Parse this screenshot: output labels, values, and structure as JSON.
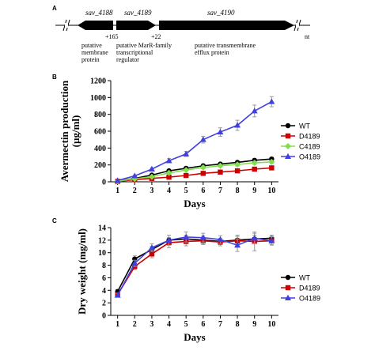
{
  "panel_a": {
    "letter": "A",
    "genes": [
      "sav_4188",
      "sav_4189",
      "sav_4190"
    ],
    "distance_left": "+165",
    "distance_right": "+22",
    "unit": "nt",
    "descriptions": [
      [
        "putative",
        "membrane",
        "protein"
      ],
      [
        "putative MarR-family",
        "transcriptional",
        "regulator"
      ],
      [
        "putative transmembrane",
        "efflux protein"
      ]
    ]
  },
  "chart_data": [
    {
      "type": "line",
      "letter": "B",
      "xlabel": "Days",
      "ylabel_lines": [
        "Avermectin production",
        "(µg/ml)"
      ],
      "x": [
        1,
        2,
        3,
        4,
        5,
        6,
        7,
        8,
        9,
        10
      ],
      "xlim": [
        0.6,
        10.4
      ],
      "ylim": [
        0,
        1200
      ],
      "yticks": [
        0,
        200,
        400,
        600,
        800,
        1000,
        1200
      ],
      "legend_position": "right",
      "series": [
        {
          "name": "WT",
          "color": "#000000",
          "marker": "circle",
          "values": [
            10,
            40,
            80,
            130,
            160,
            190,
            210,
            230,
            255,
            270
          ],
          "err": [
            5,
            8,
            10,
            15,
            15,
            18,
            18,
            20,
            20,
            20
          ]
        },
        {
          "name": "D4189",
          "color": "#cc0000",
          "marker": "square",
          "values": [
            5,
            25,
            40,
            55,
            75,
            100,
            115,
            130,
            150,
            165
          ],
          "err": [
            3,
            5,
            6,
            8,
            10,
            10,
            12,
            12,
            15,
            15
          ]
        },
        {
          "name": "C4189",
          "color": "#7fe04c",
          "marker": "diamond",
          "values": [
            8,
            35,
            60,
            105,
            140,
            170,
            190,
            205,
            225,
            235
          ],
          "err": [
            4,
            6,
            8,
            10,
            12,
            15,
            15,
            18,
            18,
            18
          ]
        },
        {
          "name": "O4189",
          "color": "#4040e0",
          "marker": "triangle",
          "values": [
            15,
            70,
            150,
            250,
            330,
            500,
            590,
            670,
            840,
            950
          ],
          "err": [
            5,
            10,
            15,
            25,
            30,
            40,
            50,
            60,
            70,
            60
          ]
        }
      ]
    },
    {
      "type": "line",
      "letter": "C",
      "xlabel": "Days",
      "ylabel_lines": [
        "Dry weight (mg/ml)"
      ],
      "x": [
        1,
        2,
        3,
        4,
        5,
        6,
        7,
        8,
        9,
        10
      ],
      "xlim": [
        0.6,
        10.4
      ],
      "ylim": [
        0,
        14
      ],
      "yticks": [
        0,
        2,
        4,
        6,
        8,
        10,
        12,
        14
      ],
      "legend_position": "right",
      "series": [
        {
          "name": "WT",
          "color": "#000000",
          "marker": "circle",
          "values": [
            3.8,
            9.0,
            10.5,
            12.0,
            12.2,
            12.0,
            11.8,
            12.0,
            12.2,
            12.3
          ],
          "err": [
            0.3,
            0.5,
            0.5,
            0.8,
            0.6,
            0.7,
            0.5,
            0.8,
            0.6,
            0.5
          ]
        },
        {
          "name": "D4189",
          "color": "#cc0000",
          "marker": "square",
          "values": [
            3.3,
            7.8,
            9.8,
            11.6,
            11.8,
            11.9,
            11.7,
            11.9,
            11.8,
            11.9
          ],
          "err": [
            0.3,
            0.5,
            0.6,
            0.8,
            0.7,
            0.6,
            0.6,
            0.7,
            1.5,
            0.6
          ]
        },
        {
          "name": "O4189",
          "color": "#4040e0",
          "marker": "triangle",
          "values": [
            3.2,
            8.3,
            10.8,
            12.0,
            12.5,
            12.4,
            12.1,
            11.2,
            12.3,
            11.9
          ],
          "err": [
            0.3,
            0.5,
            0.6,
            0.8,
            0.8,
            0.7,
            0.6,
            1.0,
            0.8,
            0.7
          ]
        }
      ]
    }
  ]
}
